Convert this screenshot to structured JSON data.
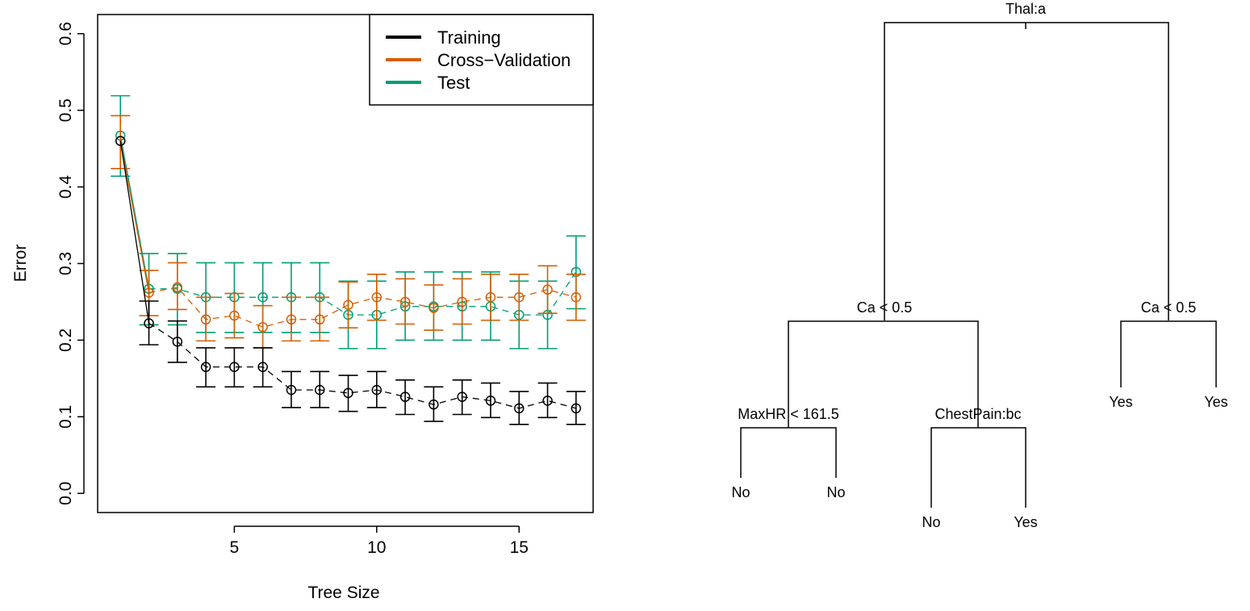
{
  "chart_data": [
    {
      "type": "line",
      "title": "",
      "xlabel": "Tree Size",
      "ylabel": "Error",
      "xlim": [
        0.2,
        17.6
      ],
      "ylim": [
        -0.025,
        0.625
      ],
      "xticks": [
        5,
        10,
        15
      ],
      "yticks": [
        0.0,
        0.1,
        0.2,
        0.3,
        0.4,
        0.5,
        0.6
      ],
      "ytick_labels": [
        "0.0",
        "0.1",
        "0.2",
        "0.3",
        "0.4",
        "0.5",
        "0.6"
      ],
      "grid": false,
      "legend_position": "top-right",
      "colors": {
        "training": "#000000",
        "cross_validation": "#D55E00",
        "test": "#009E73"
      },
      "x": [
        1,
        2,
        3,
        4,
        5,
        6,
        7,
        8,
        9,
        10,
        11,
        12,
        13,
        14,
        15,
        16,
        17
      ],
      "series": [
        {
          "name": "Training",
          "color": "#000000",
          "values": [
            0.46,
            0.222,
            0.198,
            0.165,
            0.165,
            0.165,
            0.135,
            0.135,
            0.131,
            0.135,
            0.126,
            0.116,
            0.126,
            0.121,
            0.111,
            0.121,
            0.111
          ],
          "err_low": [
            0.46,
            0.194,
            0.171,
            0.139,
            0.139,
            0.139,
            0.112,
            0.112,
            0.107,
            0.112,
            0.103,
            0.094,
            0.103,
            0.099,
            0.09,
            0.099,
            0.09
          ],
          "err_high": [
            0.46,
            0.251,
            0.225,
            0.19,
            0.19,
            0.19,
            0.159,
            0.159,
            0.154,
            0.159,
            0.148,
            0.139,
            0.148,
            0.144,
            0.133,
            0.144,
            0.133
          ]
        },
        {
          "name": "Cross−Validation",
          "color": "#D55E00",
          "values": [
            0.46,
            0.262,
            0.269,
            0.227,
            0.232,
            0.217,
            0.227,
            0.227,
            0.246,
            0.256,
            0.25,
            0.242,
            0.25,
            0.256,
            0.256,
            0.266,
            0.256
          ],
          "err_low": [
            0.424,
            0.232,
            0.24,
            0.199,
            0.203,
            0.19,
            0.199,
            0.199,
            0.216,
            0.226,
            0.221,
            0.213,
            0.221,
            0.226,
            0.226,
            0.235,
            0.226
          ],
          "err_high": [
            0.493,
            0.291,
            0.301,
            0.256,
            0.261,
            0.245,
            0.256,
            0.256,
            0.276,
            0.286,
            0.28,
            0.272,
            0.28,
            0.286,
            0.286,
            0.297,
            0.286
          ]
        },
        {
          "name": "Test",
          "color": "#009E73",
          "values": [
            0.467,
            0.267,
            0.267,
            0.256,
            0.256,
            0.256,
            0.256,
            0.256,
            0.233,
            0.233,
            0.244,
            0.244,
            0.244,
            0.244,
            0.233,
            0.233,
            0.289
          ],
          "err_low": [
            0.414,
            0.22,
            0.22,
            0.21,
            0.21,
            0.21,
            0.21,
            0.21,
            0.189,
            0.189,
            0.2,
            0.2,
            0.2,
            0.2,
            0.189,
            0.189,
            0.241
          ],
          "err_high": [
            0.519,
            0.313,
            0.313,
            0.301,
            0.301,
            0.301,
            0.301,
            0.301,
            0.277,
            0.277,
            0.289,
            0.289,
            0.289,
            0.289,
            0.277,
            0.277,
            0.336
          ]
        }
      ]
    },
    {
      "type": "tree",
      "nodes": {
        "root": "Thal:a",
        "left_split": "Ca < 0.5",
        "right_split": "Ca < 0.5",
        "left_left_split": "MaxHR < 161.5",
        "left_right_split": "ChestPain:bc",
        "leaf_1": "No",
        "leaf_2": "No",
        "leaf_3": "No",
        "leaf_4": "Yes",
        "leaf_5": "Yes",
        "leaf_6": "Yes"
      }
    }
  ]
}
